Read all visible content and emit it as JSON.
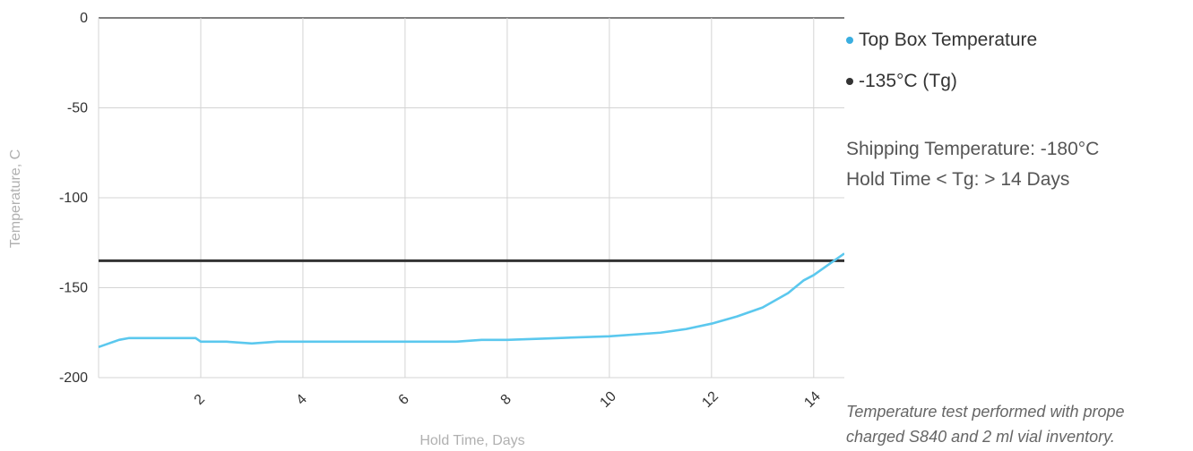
{
  "chart_data": {
    "type": "line",
    "xlabel": "Hold Time, Days",
    "ylabel": "Temperature, C",
    "xlim": [
      0,
      14.6
    ],
    "ylim": [
      -200,
      0
    ],
    "x_ticks": [
      2,
      4,
      6,
      8,
      10,
      12,
      14
    ],
    "y_ticks": [
      0,
      -50,
      -100,
      -150,
      -200
    ],
    "grid": true,
    "legend_placement": "right",
    "series": [
      {
        "name": "Top Box Temperature",
        "color": "#5bc8ee",
        "points": [
          [
            0.0,
            -183
          ],
          [
            0.2,
            -181
          ],
          [
            0.4,
            -179
          ],
          [
            0.6,
            -178
          ],
          [
            1.0,
            -178
          ],
          [
            1.5,
            -178
          ],
          [
            1.9,
            -178
          ],
          [
            2.0,
            -180
          ],
          [
            2.5,
            -180
          ],
          [
            3.0,
            -181
          ],
          [
            3.5,
            -180
          ],
          [
            4.0,
            -180
          ],
          [
            5.0,
            -180
          ],
          [
            6.0,
            -180
          ],
          [
            7.0,
            -180
          ],
          [
            7.5,
            -179
          ],
          [
            8.0,
            -179
          ],
          [
            9.0,
            -178
          ],
          [
            10.0,
            -177
          ],
          [
            11.0,
            -175
          ],
          [
            11.5,
            -173
          ],
          [
            12.0,
            -170
          ],
          [
            12.5,
            -166
          ],
          [
            13.0,
            -161
          ],
          [
            13.5,
            -153
          ],
          [
            13.8,
            -146
          ],
          [
            14.0,
            -143
          ],
          [
            14.3,
            -137
          ],
          [
            14.6,
            -131
          ]
        ]
      },
      {
        "name": "-135°C (Tg)",
        "color": "#333333",
        "points": [
          [
            0,
            -135
          ],
          [
            14.6,
            -135
          ]
        ]
      }
    ]
  },
  "info": {
    "shipping": "Shipping Temperature: -180°C",
    "hold": "Hold Time < Tg: > 14 Days"
  },
  "footnote": {
    "line1": "Temperature test performed with prope",
    "line2": "charged S840 and 2 ml vial inventory."
  }
}
